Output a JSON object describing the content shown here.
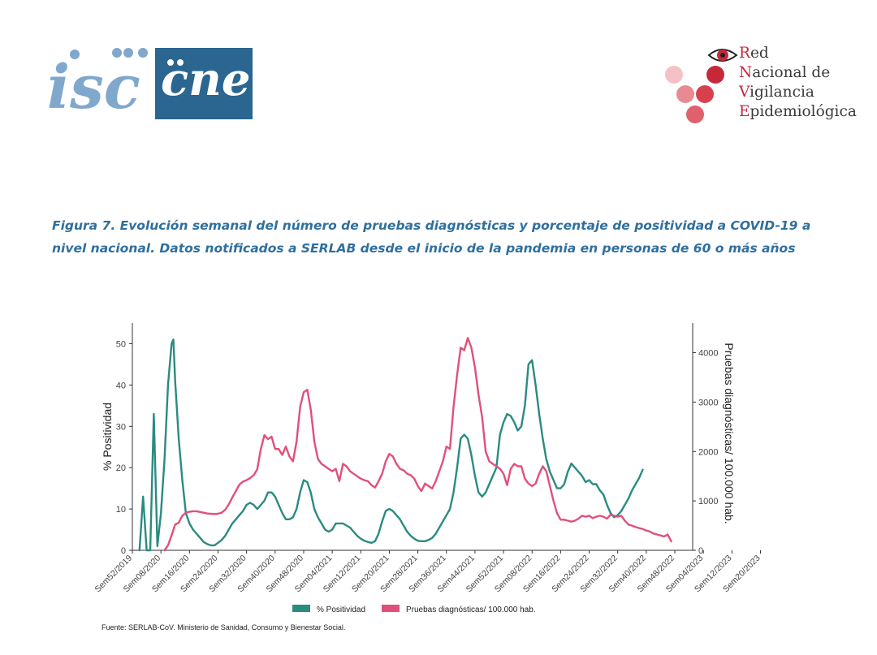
{
  "header": {
    "logo_isc_text": "isc",
    "logo_cne_text": "cne",
    "rnve_lines": [
      {
        "cap": "R",
        "rest": "ed"
      },
      {
        "cap": "N",
        "rest": "acional de"
      },
      {
        "cap": "V",
        "rest": "igilancia"
      },
      {
        "cap": "E",
        "rest": "pidemiológica"
      }
    ]
  },
  "caption": {
    "line1": "Figura 7. Evolución semanal del número de pruebas diagnósticas y porcentaje de positividad a COVID-19 a",
    "line2": "nivel nacional. Datos notificados a SERLAB desde el inicio de la pandemia en personas de 60 o más años"
  },
  "colors": {
    "positividad": "#2a8b80",
    "pruebas": "#e0507a",
    "caption": "#2f6f9e",
    "cne_bg": "#2a6690",
    "isc": "#7fa8cc",
    "rnve_red": "#c6283a"
  },
  "chart_data": {
    "type": "line",
    "ylabel": "% Positividad",
    "y2label": "Pruebas diagnósticas/ 100.000 hab.",
    "ylim": [
      0,
      55
    ],
    "y2lim": [
      0,
      4600
    ],
    "yticks": [
      0,
      10,
      20,
      30,
      40,
      50
    ],
    "y2ticks": [
      0,
      1000,
      2000,
      3000,
      4000
    ],
    "xticks": [
      "Sem52/2019",
      "Sem08/2020",
      "Sem16/2020",
      "Sem24/2020",
      "Sem32/2020",
      "Sem40/2020",
      "Sem48/2020",
      "Sem04/2021",
      "Sem12/2021",
      "Sem20/2021",
      "Sem28/2021",
      "Sem36/2021",
      "Sem44/2021",
      "Sem52/2021",
      "Sem08/2022",
      "Sem16/2022",
      "Sem24/2022",
      "Sem32/2022",
      "Sem40/2022",
      "Sem48/2022",
      "Sem04/2023",
      "Sem12/2023",
      "Sem20/2023"
    ],
    "legend_position": "bottom",
    "series": [
      {
        "name": "% Positividad",
        "axis": "left",
        "points": [
          [
            2,
            0
          ],
          [
            3,
            13
          ],
          [
            4,
            0
          ],
          [
            5,
            0
          ],
          [
            6,
            33
          ],
          [
            7,
            1
          ],
          [
            8,
            9
          ],
          [
            9,
            22
          ],
          [
            10,
            40
          ],
          [
            11,
            50
          ],
          [
            11.5,
            51
          ],
          [
            12,
            41
          ],
          [
            13,
            27
          ],
          [
            14,
            17
          ],
          [
            15,
            9
          ],
          [
            16,
            6.5
          ],
          [
            17,
            5
          ],
          [
            18,
            4
          ],
          [
            19,
            3
          ],
          [
            20,
            2
          ],
          [
            21,
            1.5
          ],
          [
            22,
            1.2
          ],
          [
            23,
            1.2
          ],
          [
            24,
            1.8
          ],
          [
            25,
            2.5
          ],
          [
            26,
            3.5
          ],
          [
            27,
            5
          ],
          [
            28,
            6.5
          ],
          [
            29,
            7.5
          ],
          [
            30,
            8.5
          ],
          [
            31,
            9.5
          ],
          [
            32,
            11
          ],
          [
            33,
            11.5
          ],
          [
            34,
            11
          ],
          [
            35,
            10
          ],
          [
            36,
            11
          ],
          [
            37,
            12
          ],
          [
            38,
            14
          ],
          [
            39,
            14
          ],
          [
            40,
            13
          ],
          [
            41,
            11
          ],
          [
            42,
            9
          ],
          [
            43,
            7.5
          ],
          [
            44,
            7.5
          ],
          [
            45,
            8
          ],
          [
            46,
            10
          ],
          [
            47,
            14
          ],
          [
            48,
            17
          ],
          [
            49,
            16.5
          ],
          [
            50,
            14
          ],
          [
            51,
            10
          ],
          [
            52,
            8
          ],
          [
            53,
            6.5
          ],
          [
            54,
            5
          ],
          [
            55,
            4.5
          ],
          [
            56,
            5
          ],
          [
            57,
            6.5
          ],
          [
            58,
            6.5
          ],
          [
            59,
            6.5
          ],
          [
            60,
            6
          ],
          [
            61,
            5.5
          ],
          [
            62,
            4.5
          ],
          [
            63,
            3.5
          ],
          [
            64,
            2.8
          ],
          [
            65,
            2.3
          ],
          [
            66,
            2
          ],
          [
            67,
            1.8
          ],
          [
            68,
            2.2
          ],
          [
            69,
            4
          ],
          [
            70,
            7
          ],
          [
            71,
            9.5
          ],
          [
            72,
            10
          ],
          [
            73,
            9.5
          ],
          [
            74,
            8.5
          ],
          [
            75,
            7.5
          ],
          [
            76,
            6
          ],
          [
            77,
            4.5
          ],
          [
            78,
            3.5
          ],
          [
            79,
            2.8
          ],
          [
            80,
            2.3
          ],
          [
            81,
            2.2
          ],
          [
            82,
            2.2
          ],
          [
            83,
            2.5
          ],
          [
            84,
            3
          ],
          [
            85,
            4
          ],
          [
            86,
            5.5
          ],
          [
            87,
            7
          ],
          [
            88,
            8.5
          ],
          [
            89,
            10
          ],
          [
            90,
            14
          ],
          [
            91,
            20
          ],
          [
            92,
            27
          ],
          [
            93,
            28
          ],
          [
            94,
            27
          ],
          [
            95,
            23
          ],
          [
            96,
            18
          ],
          [
            97,
            14
          ],
          [
            98,
            13
          ],
          [
            99,
            14
          ],
          [
            100,
            16
          ],
          [
            101,
            18
          ],
          [
            102,
            20
          ],
          [
            103,
            28
          ],
          [
            104,
            31
          ],
          [
            105,
            33
          ],
          [
            106,
            32.5
          ],
          [
            107,
            31
          ],
          [
            108,
            29
          ],
          [
            109,
            30
          ],
          [
            110,
            35
          ],
          [
            111,
            45
          ],
          [
            112,
            46
          ],
          [
            113,
            40
          ],
          [
            114,
            33
          ],
          [
            115,
            27
          ],
          [
            116,
            22
          ],
          [
            117,
            19
          ],
          [
            118,
            17
          ],
          [
            119,
            15
          ],
          [
            120,
            15
          ],
          [
            121,
            16
          ],
          [
            122,
            19
          ],
          [
            123,
            21
          ],
          [
            124,
            20
          ],
          [
            125,
            19
          ],
          [
            126,
            18
          ],
          [
            127,
            16.5
          ],
          [
            128,
            17
          ],
          [
            129,
            16
          ],
          [
            130,
            16
          ],
          [
            131,
            14.5
          ],
          [
            132,
            13.5
          ],
          [
            133,
            11
          ],
          [
            134,
            9
          ],
          [
            135,
            8
          ],
          [
            136,
            8.5
          ],
          [
            137,
            9.5
          ],
          [
            138,
            11
          ],
          [
            139,
            12.5
          ],
          [
            140,
            14.5
          ],
          [
            141,
            16
          ],
          [
            142,
            17.5
          ],
          [
            143,
            19.5
          ]
        ]
      },
      {
        "name": "Pruebas diagnósticas/ 100.000 hab.",
        "axis": "right",
        "points": [
          [
            9,
            0
          ],
          [
            10,
            100
          ],
          [
            11,
            300
          ],
          [
            12,
            520
          ],
          [
            13,
            560
          ],
          [
            14,
            700
          ],
          [
            15,
            760
          ],
          [
            16,
            780
          ],
          [
            17,
            790
          ],
          [
            18,
            790
          ],
          [
            19,
            775
          ],
          [
            20,
            760
          ],
          [
            21,
            745
          ],
          [
            22,
            740
          ],
          [
            23,
            735
          ],
          [
            24,
            740
          ],
          [
            25,
            760
          ],
          [
            26,
            820
          ],
          [
            27,
            930
          ],
          [
            28,
            1070
          ],
          [
            29,
            1200
          ],
          [
            30,
            1330
          ],
          [
            31,
            1390
          ],
          [
            32,
            1420
          ],
          [
            33,
            1460
          ],
          [
            34,
            1520
          ],
          [
            35,
            1640
          ],
          [
            36,
            2050
          ],
          [
            37,
            2330
          ],
          [
            38,
            2250
          ],
          [
            39,
            2300
          ],
          [
            40,
            2050
          ],
          [
            41,
            2050
          ],
          [
            42,
            1930
          ],
          [
            43,
            2100
          ],
          [
            44,
            1900
          ],
          [
            45,
            1800
          ],
          [
            46,
            2200
          ],
          [
            47,
            2900
          ],
          [
            48,
            3200
          ],
          [
            49,
            3250
          ],
          [
            50,
            2850
          ],
          [
            51,
            2200
          ],
          [
            52,
            1850
          ],
          [
            53,
            1750
          ],
          [
            54,
            1700
          ],
          [
            55,
            1650
          ],
          [
            56,
            1600
          ],
          [
            57,
            1650
          ],
          [
            58,
            1400
          ],
          [
            59,
            1750
          ],
          [
            60,
            1700
          ],
          [
            61,
            1600
          ],
          [
            62,
            1550
          ],
          [
            63,
            1500
          ],
          [
            64,
            1450
          ],
          [
            65,
            1420
          ],
          [
            66,
            1400
          ],
          [
            67,
            1320
          ],
          [
            68,
            1270
          ],
          [
            69,
            1400
          ],
          [
            70,
            1550
          ],
          [
            71,
            1800
          ],
          [
            72,
            1950
          ],
          [
            73,
            1900
          ],
          [
            74,
            1750
          ],
          [
            75,
            1650
          ],
          [
            76,
            1620
          ],
          [
            77,
            1550
          ],
          [
            78,
            1520
          ],
          [
            79,
            1450
          ],
          [
            80,
            1300
          ],
          [
            81,
            1200
          ],
          [
            82,
            1350
          ],
          [
            83,
            1300
          ],
          [
            84,
            1250
          ],
          [
            85,
            1400
          ],
          [
            86,
            1600
          ],
          [
            87,
            1800
          ],
          [
            88,
            2100
          ],
          [
            89,
            2050
          ],
          [
            90,
            2900
          ],
          [
            91,
            3550
          ],
          [
            92,
            4100
          ],
          [
            93,
            4050
          ],
          [
            94,
            4300
          ],
          [
            95,
            4100
          ],
          [
            96,
            3700
          ],
          [
            97,
            3150
          ],
          [
            98,
            2700
          ],
          [
            99,
            2000
          ],
          [
            100,
            1800
          ],
          [
            101,
            1750
          ],
          [
            102,
            1700
          ],
          [
            103,
            1650
          ],
          [
            104,
            1550
          ],
          [
            105,
            1320
          ],
          [
            106,
            1650
          ],
          [
            107,
            1750
          ],
          [
            108,
            1700
          ],
          [
            109,
            1700
          ],
          [
            110,
            1450
          ],
          [
            111,
            1350
          ],
          [
            112,
            1300
          ],
          [
            113,
            1350
          ],
          [
            114,
            1550
          ],
          [
            115,
            1700
          ],
          [
            116,
            1600
          ],
          [
            117,
            1300
          ],
          [
            118,
            1000
          ],
          [
            119,
            750
          ],
          [
            120,
            620
          ],
          [
            121,
            620
          ],
          [
            122,
            600
          ],
          [
            123,
            580
          ],
          [
            124,
            600
          ],
          [
            125,
            640
          ],
          [
            126,
            700
          ],
          [
            127,
            680
          ],
          [
            128,
            700
          ],
          [
            129,
            650
          ],
          [
            130,
            680
          ],
          [
            131,
            700
          ],
          [
            132,
            680
          ],
          [
            133,
            640
          ],
          [
            134,
            720
          ],
          [
            135,
            700
          ],
          [
            136,
            680
          ],
          [
            137,
            700
          ],
          [
            138,
            600
          ],
          [
            139,
            520
          ],
          [
            140,
            500
          ],
          [
            141,
            470
          ],
          [
            142,
            450
          ],
          [
            143,
            430
          ],
          [
            144,
            400
          ],
          [
            145,
            380
          ],
          [
            146,
            340
          ],
          [
            147,
            320
          ],
          [
            148,
            300
          ],
          [
            149,
            280
          ],
          [
            150,
            320
          ],
          [
            151,
            180
          ]
        ]
      }
    ]
  },
  "source": "Fuente: SERLAB-CoV. Ministerio de Sanidad, Consumo y Bienestar Social."
}
